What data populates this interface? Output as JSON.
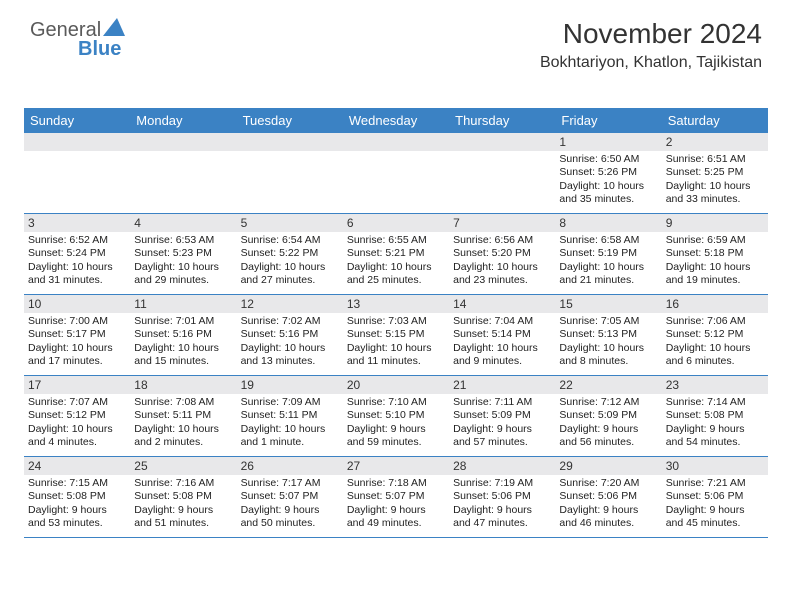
{
  "logo": {
    "word1": "General",
    "word2": "Blue"
  },
  "title": "November 2024",
  "location": "Bokhtariyon, Khatlon, Tajikistan",
  "colors": {
    "header_bg": "#3b82c4",
    "numband_bg": "#e8e8ea",
    "border": "#3b82c4",
    "text": "#222222",
    "title_text": "#333333",
    "logo_gray": "#5a5a5a",
    "logo_blue": "#3b82c4",
    "bg": "#ffffff"
  },
  "weekdays": [
    "Sunday",
    "Monday",
    "Tuesday",
    "Wednesday",
    "Thursday",
    "Friday",
    "Saturday"
  ],
  "weeks": [
    [
      {
        "n": "",
        "sunrise": "",
        "sunset": "",
        "daylight": ""
      },
      {
        "n": "",
        "sunrise": "",
        "sunset": "",
        "daylight": ""
      },
      {
        "n": "",
        "sunrise": "",
        "sunset": "",
        "daylight": ""
      },
      {
        "n": "",
        "sunrise": "",
        "sunset": "",
        "daylight": ""
      },
      {
        "n": "",
        "sunrise": "",
        "sunset": "",
        "daylight": ""
      },
      {
        "n": "1",
        "sunrise": "Sunrise: 6:50 AM",
        "sunset": "Sunset: 5:26 PM",
        "daylight": "Daylight: 10 hours and 35 minutes."
      },
      {
        "n": "2",
        "sunrise": "Sunrise: 6:51 AM",
        "sunset": "Sunset: 5:25 PM",
        "daylight": "Daylight: 10 hours and 33 minutes."
      }
    ],
    [
      {
        "n": "3",
        "sunrise": "Sunrise: 6:52 AM",
        "sunset": "Sunset: 5:24 PM",
        "daylight": "Daylight: 10 hours and 31 minutes."
      },
      {
        "n": "4",
        "sunrise": "Sunrise: 6:53 AM",
        "sunset": "Sunset: 5:23 PM",
        "daylight": "Daylight: 10 hours and 29 minutes."
      },
      {
        "n": "5",
        "sunrise": "Sunrise: 6:54 AM",
        "sunset": "Sunset: 5:22 PM",
        "daylight": "Daylight: 10 hours and 27 minutes."
      },
      {
        "n": "6",
        "sunrise": "Sunrise: 6:55 AM",
        "sunset": "Sunset: 5:21 PM",
        "daylight": "Daylight: 10 hours and 25 minutes."
      },
      {
        "n": "7",
        "sunrise": "Sunrise: 6:56 AM",
        "sunset": "Sunset: 5:20 PM",
        "daylight": "Daylight: 10 hours and 23 minutes."
      },
      {
        "n": "8",
        "sunrise": "Sunrise: 6:58 AM",
        "sunset": "Sunset: 5:19 PM",
        "daylight": "Daylight: 10 hours and 21 minutes."
      },
      {
        "n": "9",
        "sunrise": "Sunrise: 6:59 AM",
        "sunset": "Sunset: 5:18 PM",
        "daylight": "Daylight: 10 hours and 19 minutes."
      }
    ],
    [
      {
        "n": "10",
        "sunrise": "Sunrise: 7:00 AM",
        "sunset": "Sunset: 5:17 PM",
        "daylight": "Daylight: 10 hours and 17 minutes."
      },
      {
        "n": "11",
        "sunrise": "Sunrise: 7:01 AM",
        "sunset": "Sunset: 5:16 PM",
        "daylight": "Daylight: 10 hours and 15 minutes."
      },
      {
        "n": "12",
        "sunrise": "Sunrise: 7:02 AM",
        "sunset": "Sunset: 5:16 PM",
        "daylight": "Daylight: 10 hours and 13 minutes."
      },
      {
        "n": "13",
        "sunrise": "Sunrise: 7:03 AM",
        "sunset": "Sunset: 5:15 PM",
        "daylight": "Daylight: 10 hours and 11 minutes."
      },
      {
        "n": "14",
        "sunrise": "Sunrise: 7:04 AM",
        "sunset": "Sunset: 5:14 PM",
        "daylight": "Daylight: 10 hours and 9 minutes."
      },
      {
        "n": "15",
        "sunrise": "Sunrise: 7:05 AM",
        "sunset": "Sunset: 5:13 PM",
        "daylight": "Daylight: 10 hours and 8 minutes."
      },
      {
        "n": "16",
        "sunrise": "Sunrise: 7:06 AM",
        "sunset": "Sunset: 5:12 PM",
        "daylight": "Daylight: 10 hours and 6 minutes."
      }
    ],
    [
      {
        "n": "17",
        "sunrise": "Sunrise: 7:07 AM",
        "sunset": "Sunset: 5:12 PM",
        "daylight": "Daylight: 10 hours and 4 minutes."
      },
      {
        "n": "18",
        "sunrise": "Sunrise: 7:08 AM",
        "sunset": "Sunset: 5:11 PM",
        "daylight": "Daylight: 10 hours and 2 minutes."
      },
      {
        "n": "19",
        "sunrise": "Sunrise: 7:09 AM",
        "sunset": "Sunset: 5:11 PM",
        "daylight": "Daylight: 10 hours and 1 minute."
      },
      {
        "n": "20",
        "sunrise": "Sunrise: 7:10 AM",
        "sunset": "Sunset: 5:10 PM",
        "daylight": "Daylight: 9 hours and 59 minutes."
      },
      {
        "n": "21",
        "sunrise": "Sunrise: 7:11 AM",
        "sunset": "Sunset: 5:09 PM",
        "daylight": "Daylight: 9 hours and 57 minutes."
      },
      {
        "n": "22",
        "sunrise": "Sunrise: 7:12 AM",
        "sunset": "Sunset: 5:09 PM",
        "daylight": "Daylight: 9 hours and 56 minutes."
      },
      {
        "n": "23",
        "sunrise": "Sunrise: 7:14 AM",
        "sunset": "Sunset: 5:08 PM",
        "daylight": "Daylight: 9 hours and 54 minutes."
      }
    ],
    [
      {
        "n": "24",
        "sunrise": "Sunrise: 7:15 AM",
        "sunset": "Sunset: 5:08 PM",
        "daylight": "Daylight: 9 hours and 53 minutes."
      },
      {
        "n": "25",
        "sunrise": "Sunrise: 7:16 AM",
        "sunset": "Sunset: 5:08 PM",
        "daylight": "Daylight: 9 hours and 51 minutes."
      },
      {
        "n": "26",
        "sunrise": "Sunrise: 7:17 AM",
        "sunset": "Sunset: 5:07 PM",
        "daylight": "Daylight: 9 hours and 50 minutes."
      },
      {
        "n": "27",
        "sunrise": "Sunrise: 7:18 AM",
        "sunset": "Sunset: 5:07 PM",
        "daylight": "Daylight: 9 hours and 49 minutes."
      },
      {
        "n": "28",
        "sunrise": "Sunrise: 7:19 AM",
        "sunset": "Sunset: 5:06 PM",
        "daylight": "Daylight: 9 hours and 47 minutes."
      },
      {
        "n": "29",
        "sunrise": "Sunrise: 7:20 AM",
        "sunset": "Sunset: 5:06 PM",
        "daylight": "Daylight: 9 hours and 46 minutes."
      },
      {
        "n": "30",
        "sunrise": "Sunrise: 7:21 AM",
        "sunset": "Sunset: 5:06 PM",
        "daylight": "Daylight: 9 hours and 45 minutes."
      }
    ]
  ]
}
